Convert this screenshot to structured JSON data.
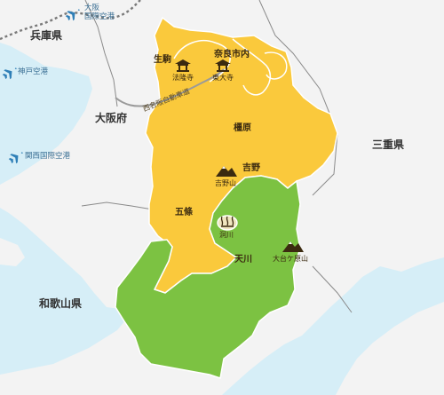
{
  "map": {
    "colors": {
      "sea": "#d6eef7",
      "land": "#f3f3f3",
      "nara_north": "#fac93c",
      "nara_south": "#7cc242",
      "boundary": "#ffffff",
      "rail": "#9a9a9a",
      "pref_border": "#777777",
      "label": "#3b2a10",
      "airport": "#2f7fb7"
    },
    "prefectures": {
      "hyogo": "兵庫県",
      "osaka": "大阪府",
      "wakayama": "和歌山県",
      "mie": "三重県"
    },
    "airports": {
      "itami_line1": "大阪",
      "itami_line2": "国際空港",
      "kobe": "神戸空港",
      "kansai": "関西国際空港"
    },
    "cities": {
      "ikoma": "生駒",
      "nara_city": "奈良市内",
      "kashihara": "橿原",
      "yoshino": "吉野",
      "gojo": "五條",
      "tenkawa": "天川"
    },
    "places": {
      "horyuji": "法隆寺",
      "todaiji": "東大寺",
      "yoshinoyama": "吉野山",
      "dorogawa": "洞川",
      "odaigahara": "大台ケ原山"
    },
    "road": "西名阪自動車道",
    "icons": [
      "airplane-icon",
      "temple-icon",
      "mountain-icon",
      "hot-spring-icon"
    ]
  }
}
